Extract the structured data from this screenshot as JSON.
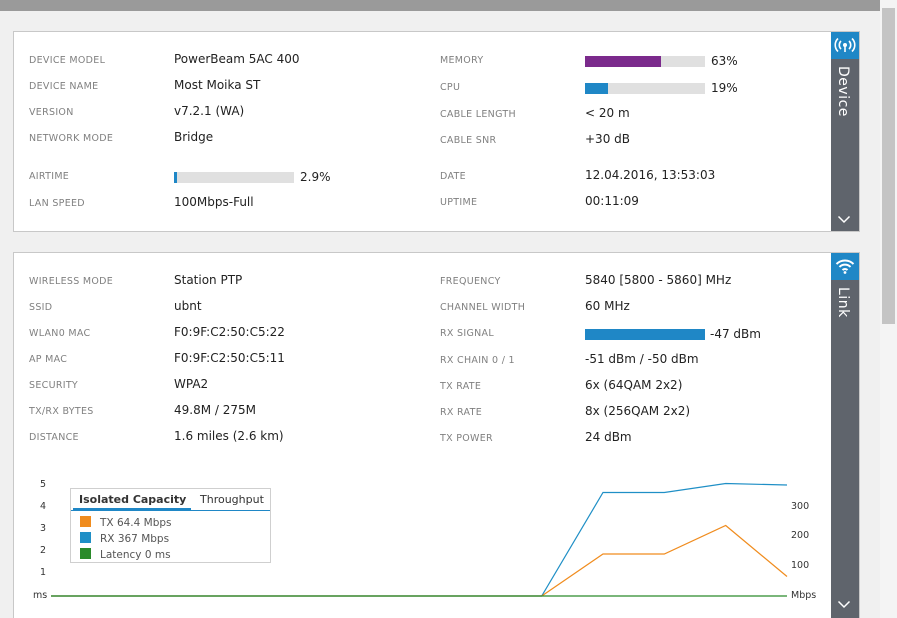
{
  "device": {
    "tab_label": "Device",
    "left": [
      {
        "label": "DEVICE MODEL",
        "value": "PowerBeam 5AC 400"
      },
      {
        "label": "DEVICE NAME",
        "value": "Most Moika ST"
      },
      {
        "label": "VERSION",
        "value": "v7.2.1 (WA)"
      },
      {
        "label": "NETWORK MODE",
        "value": "Bridge"
      }
    ],
    "airtime": {
      "label": "AIRTIME",
      "value": "2.9%",
      "fraction": 0.029,
      "color": "#1f87c6"
    },
    "lan_speed": {
      "label": "LAN SPEED",
      "value": "100Mbps-Full"
    },
    "memory": {
      "label": "MEMORY",
      "value": "63%",
      "fraction": 0.63,
      "color": "#7b2a8c"
    },
    "cpu": {
      "label": "CPU",
      "value": "19%",
      "fraction": 0.19,
      "color": "#1f87c6"
    },
    "cable_length": {
      "label": "CABLE LENGTH",
      "value": "< 20 m"
    },
    "cable_snr": {
      "label": "CABLE SNR",
      "value": "+30 dB"
    },
    "date": {
      "label": "DATE",
      "value": "12.04.2016, 13:53:03"
    },
    "uptime": {
      "label": "UPTIME",
      "value": "00:11:09"
    }
  },
  "link": {
    "tab_label": "Link",
    "left": [
      {
        "label": "WIRELESS MODE",
        "value": "Station PTP"
      },
      {
        "label": "SSID",
        "value": "ubnt"
      },
      {
        "label": "WLAN0 MAC",
        "value": "F0:9F:C2:50:C5:22"
      },
      {
        "label": "AP MAC",
        "value": "F0:9F:C2:50:C5:11"
      },
      {
        "label": "SECURITY",
        "value": "WPA2"
      },
      {
        "label": "TX/RX BYTES",
        "value": "49.8M / 275M"
      },
      {
        "label": "DISTANCE",
        "value": "1.6 miles (2.6 km)"
      }
    ],
    "frequency": {
      "label": "FREQUENCY",
      "value": "5840 [5800 - 5860] MHz"
    },
    "channel_width": {
      "label": "CHANNEL WIDTH",
      "value": "60 MHz"
    },
    "rx_signal": {
      "label": "RX SIGNAL",
      "value": "-47 dBm",
      "fraction": 1.0,
      "color": "#1f87c6"
    },
    "right_rest": [
      {
        "label": "RX CHAIN 0 / 1",
        "value": "-51 dBm / -50 dBm"
      },
      {
        "label": "TX RATE",
        "value": "6x (64QAM 2x2)"
      },
      {
        "label": "RX RATE",
        "value": "8x (256QAM 2x2)"
      },
      {
        "label": "TX POWER",
        "value": "24 dBm"
      }
    ]
  },
  "legend": {
    "tab_active": "Isolated Capacity",
    "tab_inactive": "Throughput",
    "entries": [
      {
        "text": "TX 64.4 Mbps",
        "color": "#f08c1e"
      },
      {
        "text": "RX 367 Mbps",
        "color": "#1f8fc6"
      },
      {
        "text": "Latency 0 ms",
        "color": "#2a8a2a"
      }
    ]
  },
  "chart_data": {
    "type": "line",
    "left_axis": {
      "unit": "ms",
      "ticks": [
        "5",
        "4",
        "3",
        "2",
        "1"
      ]
    },
    "right_axis": {
      "unit": "Mbps",
      "ticks": [
        "300",
        "200",
        "100"
      ],
      "range": [
        0,
        400
      ]
    },
    "x": [
      0,
      1,
      2,
      3,
      4,
      5,
      6,
      7,
      8,
      9,
      10,
      11,
      12
    ],
    "series": [
      {
        "name": "RX",
        "color": "#1f8fc6",
        "values": [
          0,
          0,
          0,
          0,
          0,
          0,
          0,
          0,
          0,
          345,
          345,
          375,
          370
        ]
      },
      {
        "name": "TX",
        "color": "#f08c1e",
        "values": [
          0,
          0,
          0,
          0,
          0,
          0,
          0,
          0,
          0,
          140,
          140,
          235,
          65
        ]
      },
      {
        "name": "Latency",
        "color": "#2a8a2a",
        "values": [
          0,
          0,
          0,
          0,
          0,
          0,
          0,
          0,
          0,
          0,
          0,
          0,
          0
        ]
      }
    ]
  }
}
